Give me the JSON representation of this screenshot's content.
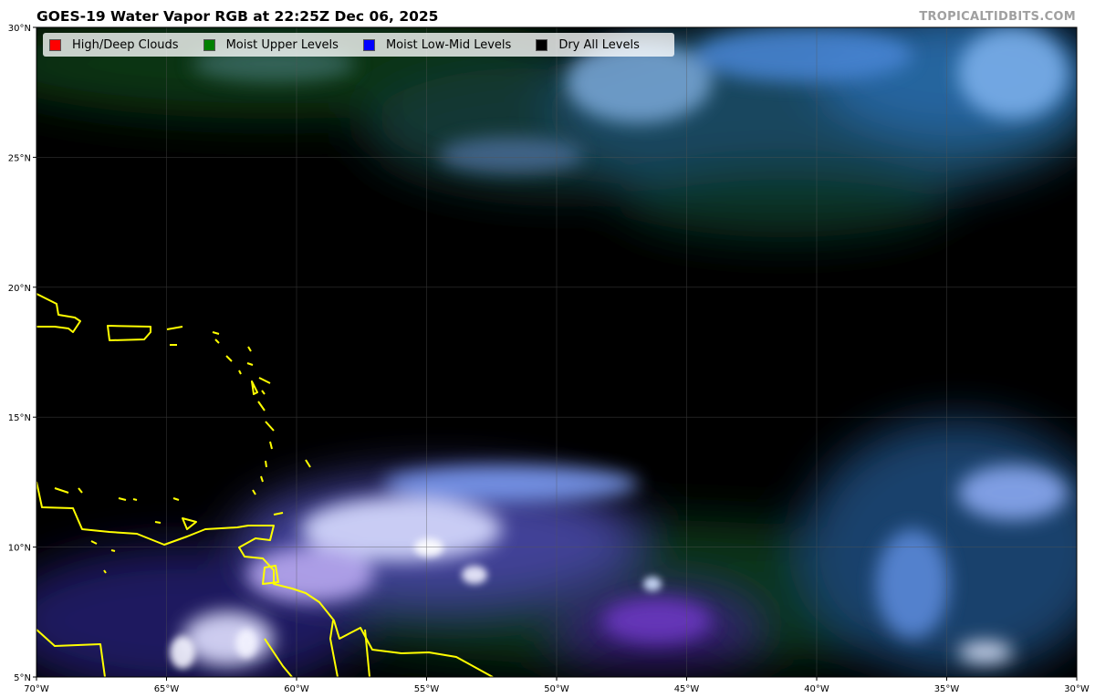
{
  "title": "GOES-19 Water Vapor RGB at 22:25Z Dec 06, 2025",
  "watermark": "TROPICALTIDBITS.COM",
  "map": {
    "lon_range": [
      -70,
      -30
    ],
    "lat_range": [
      5,
      30
    ],
    "gridlines": true,
    "coastline_color": "#ffff00",
    "x_ticks": [
      "70°W",
      "65°W",
      "60°W",
      "55°W",
      "50°W",
      "45°W",
      "40°W",
      "35°W",
      "30°W"
    ],
    "y_ticks": [
      "5°N",
      "10°N",
      "15°N",
      "20°N",
      "25°N",
      "30°N"
    ]
  },
  "legend": {
    "placement": "top-left",
    "items": [
      {
        "label": "High/Deep Clouds",
        "color": "#ff0000"
      },
      {
        "label": "Moist Upper Levels",
        "color": "#008000"
      },
      {
        "label": "Moist Low-Mid Levels",
        "color": "#0000ff"
      },
      {
        "label": "Dry All Levels",
        "color": "#000000"
      }
    ]
  }
}
